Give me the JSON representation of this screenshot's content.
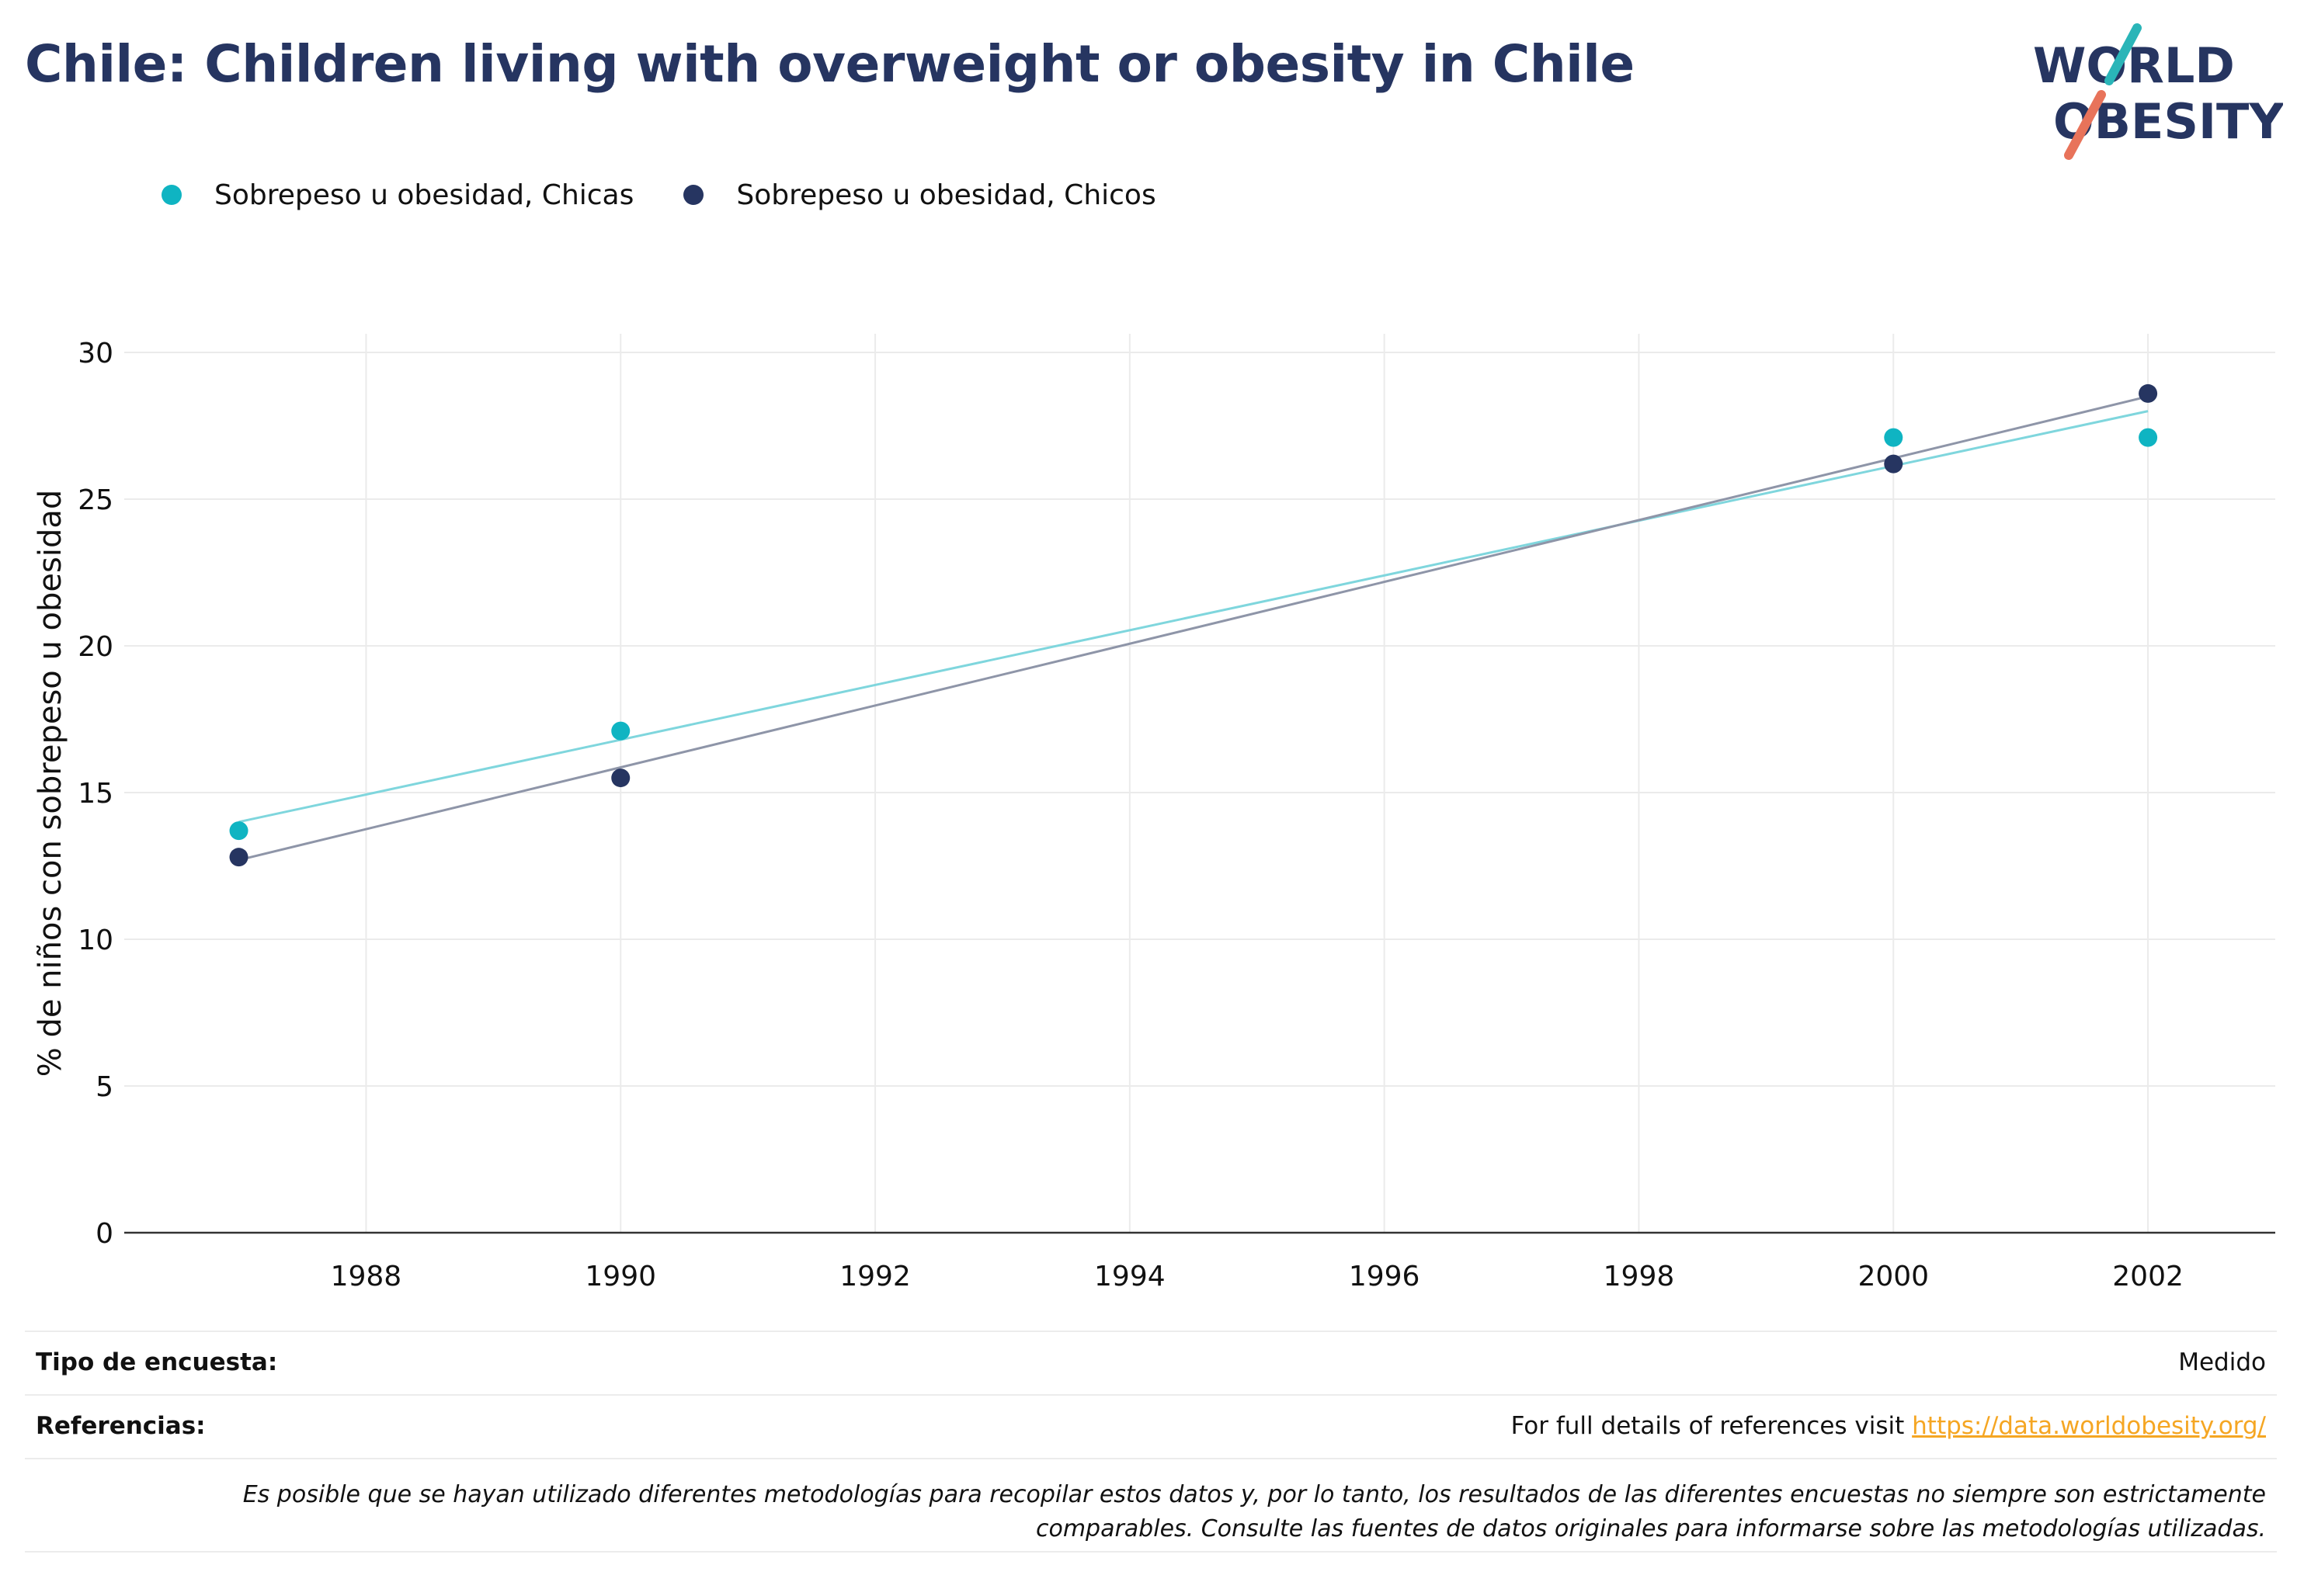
{
  "title": "Chile: Children living with overweight or obesity in Chile",
  "logo": {
    "line1": "WORLD",
    "line2": "OBESITY",
    "accent_teal": "#2ab5b8",
    "accent_coral": "#e8735a",
    "text_color": "#263561"
  },
  "legend": [
    {
      "label": "Sobrepeso u obesidad, Chicas",
      "color": "#0fb4c2"
    },
    {
      "label": "Sobrepeso u obesidad, Chicos",
      "color": "#263561"
    }
  ],
  "chart_data": {
    "type": "scatter",
    "ylabel": "% de niños con sobrepeso u obesidad",
    "xlim": [
      1986.1,
      2003
    ],
    "ylim": [
      0,
      30
    ],
    "x_ticks": [
      1988,
      1990,
      1992,
      1994,
      1996,
      1998,
      2000,
      2002
    ],
    "y_ticks": [
      0,
      5,
      10,
      15,
      20,
      25,
      30
    ],
    "grid": true,
    "legend_position": "top-left",
    "series": [
      {
        "name": "Sobrepeso u obesidad, Chicas",
        "color": "#0fb4c2",
        "trend_color": "#7fd6dd",
        "x": [
          1987,
          1990,
          2000,
          2002
        ],
        "y": [
          13.7,
          17.1,
          27.1,
          27.1
        ],
        "trend": [
          [
            1987,
            14.0
          ],
          [
            2002,
            28.0
          ]
        ]
      },
      {
        "name": "Sobrepeso u obesidad, Chicos",
        "color": "#263561",
        "trend_color": "#8e95a8",
        "x": [
          1987,
          1990,
          2000,
          2002
        ],
        "y": [
          12.8,
          15.5,
          26.2,
          28.6
        ],
        "trend": [
          [
            1987,
            12.7
          ],
          [
            2002,
            28.5
          ]
        ]
      }
    ]
  },
  "info": {
    "survey_type_label": "Tipo de encuesta:",
    "survey_type_value": "Medido",
    "references_label": "Referencias:",
    "references_text": "For full details of references visit ",
    "references_link": "https://data.worldobesity.org/",
    "note_line1": "Es posible que se hayan utilizado diferentes metodologías para recopilar estos datos y, por lo tanto, los resultados de las diferentes encuestas no siempre son estrictamente",
    "note_line2": "comparables. Consulte las fuentes de datos originales para informarse sobre las metodologías utilizadas."
  }
}
